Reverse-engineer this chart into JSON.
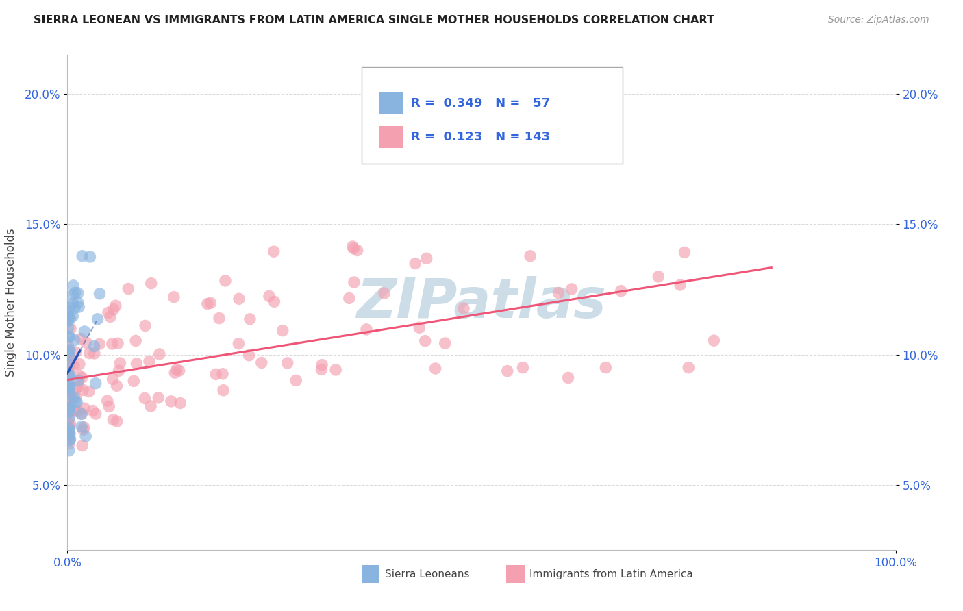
{
  "title": "SIERRA LEONEAN VS IMMIGRANTS FROM LATIN AMERICA SINGLE MOTHER HOUSEHOLDS CORRELATION CHART",
  "source": "Source: ZipAtlas.com",
  "ylabel": "Single Mother Households",
  "xlim": [
    0,
    1.0
  ],
  "ylim": [
    0.025,
    0.215
  ],
  "yticks": [
    0.05,
    0.1,
    0.15,
    0.2
  ],
  "ytick_labels": [
    "5.0%",
    "10.0%",
    "15.0%",
    "20.0%"
  ],
  "blue_color": "#89B4E0",
  "pink_color": "#F4A0B0",
  "blue_line_color": "#2255BB",
  "pink_line_color": "#EE5577",
  "title_color": "#222222",
  "source_color": "#999999",
  "legend_text_color": "#3366DD",
  "watermark_color": "#CCDDE8",
  "background_color": "#FFFFFF",
  "grid_color": "#CCCCCC",
  "legend_r1_val": "0.349",
  "legend_n1_val": "57",
  "legend_r2_val": "0.123",
  "legend_n2_val": "143"
}
